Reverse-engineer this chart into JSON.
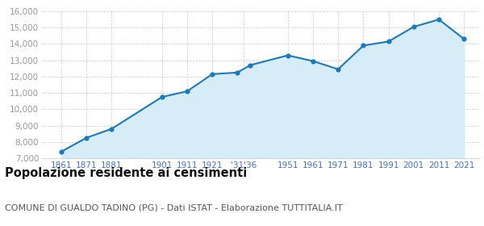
{
  "years": [
    1861,
    1871,
    1881,
    1901,
    1911,
    1921,
    1931,
    1936,
    1951,
    1961,
    1971,
    1981,
    1991,
    2001,
    2011,
    2021
  ],
  "population": [
    7400,
    8250,
    8800,
    10750,
    11100,
    12150,
    12250,
    12700,
    13300,
    12950,
    12450,
    13900,
    14150,
    15050,
    15500,
    14300
  ],
  "x_tick_labels": [
    "1861",
    "1871",
    "1881",
    "1901",
    "1911",
    "1921",
    "'31'36",
    "1951",
    "1961",
    "1971",
    "1981",
    "1991",
    "2001",
    "2011",
    "2021"
  ],
  "x_tick_positions": [
    1861,
    1871,
    1881,
    1901,
    1911,
    1921,
    1933.5,
    1951,
    1961,
    1971,
    1981,
    1991,
    2001,
    2011,
    2021
  ],
  "ylim": [
    7000,
    16000
  ],
  "yticks": [
    7000,
    8000,
    9000,
    10000,
    11000,
    12000,
    13000,
    14000,
    15000,
    16000
  ],
  "xlim_left": 1853,
  "xlim_right": 2027,
  "line_color": "#1a7abf",
  "fill_color": "#d6edf8",
  "marker_color": "#1a7abf",
  "grid_color": "#c8c8c8",
  "background_color": "#ffffff",
  "title": "Popolazione residente ai censimenti",
  "subtitle": "COMUNE DI GUALDO TADINO (PG) - Dati ISTAT - Elaborazione TUTTITALIA.IT",
  "title_fontsize": 10.5,
  "subtitle_fontsize": 8,
  "tick_label_color": "#4472c4",
  "ytick_label_color": "#999999"
}
